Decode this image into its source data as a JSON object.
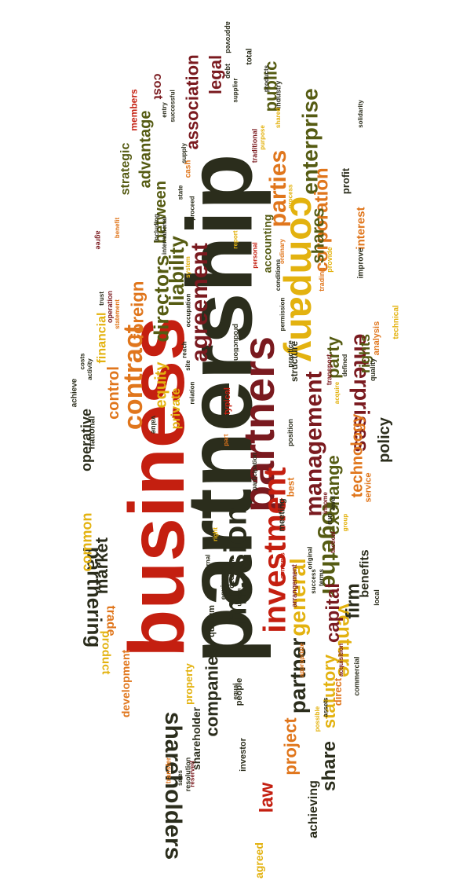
{
  "colors": {
    "red": "#c41f10",
    "orange": "#e0761c",
    "gold": "#e3b20f",
    "green": "#555b12",
    "dark": "#2b2d1c",
    "maroon": "#7a1a1f"
  },
  "words": [
    {
      "text": "partnership",
      "color": "dark",
      "size": 118
    },
    {
      "text": "business",
      "color": "red",
      "size": 100
    },
    {
      "text": "partners",
      "color": "maroon",
      "size": 56
    },
    {
      "text": "company",
      "color": "gold",
      "size": 48
    },
    {
      "text": "investment",
      "color": "red",
      "size": 40
    },
    {
      "text": "mission",
      "color": "dark",
      "size": 40
    },
    {
      "text": "contract",
      "color": "orange",
      "size": 34
    },
    {
      "text": "agreement",
      "color": "maroon",
      "size": 30
    },
    {
      "text": "management",
      "color": "maroon",
      "size": 30
    },
    {
      "text": "parties",
      "color": "orange",
      "size": 30
    },
    {
      "text": "shareholders",
      "color": "dark",
      "size": 30
    },
    {
      "text": "together",
      "color": "green",
      "size": 30
    },
    {
      "text": "enterprises",
      "color": "maroon",
      "size": 28
    },
    {
      "text": "enterprise",
      "color": "green",
      "size": 28
    },
    {
      "text": "partner",
      "color": "dark",
      "size": 28
    },
    {
      "text": "general",
      "color": "gold",
      "size": 28
    },
    {
      "text": "liability",
      "color": "green",
      "size": 26
    },
    {
      "text": "directors",
      "color": "green",
      "size": 26
    },
    {
      "text": "venture",
      "color": "gold",
      "size": 26
    },
    {
      "text": "partnering",
      "color": "dark",
      "size": 26
    },
    {
      "text": "law",
      "color": "red",
      "size": 24
    },
    {
      "text": "corporation",
      "color": "orange",
      "size": 24
    },
    {
      "text": "share",
      "color": "dark",
      "size": 24
    },
    {
      "text": "capital",
      "color": "maroon",
      "size": 24
    },
    {
      "text": "firm",
      "color": "dark",
      "size": 24
    },
    {
      "text": "association",
      "color": "maroon",
      "size": 22
    },
    {
      "text": "legal",
      "color": "maroon",
      "size": 22
    },
    {
      "text": "public",
      "color": "green",
      "size": 22
    },
    {
      "text": "foreign",
      "color": "orange",
      "size": 22
    },
    {
      "text": "market",
      "color": "dark",
      "size": 22
    },
    {
      "text": "companies",
      "color": "dark",
      "size": 22
    },
    {
      "text": "project",
      "color": "orange",
      "size": 22
    },
    {
      "text": "party",
      "color": "green",
      "size": 22
    },
    {
      "text": "shares",
      "color": "green",
      "size": 22
    },
    {
      "text": "exchange",
      "color": "green",
      "size": 22
    },
    {
      "text": "statutory",
      "color": "gold",
      "size": 22
    },
    {
      "text": "technology",
      "color": "orange",
      "size": 20
    },
    {
      "text": "policy",
      "color": "dark",
      "size": 20
    },
    {
      "text": "equity",
      "color": "gold",
      "size": 20
    },
    {
      "text": "control",
      "color": "orange",
      "size": 20
    },
    {
      "text": "between",
      "color": "green",
      "size": 20
    },
    {
      "text": "advantage",
      "color": "green",
      "size": 20
    },
    {
      "text": "operative",
      "color": "dark",
      "size": 18
    },
    {
      "text": "common",
      "color": "gold",
      "size": 18
    },
    {
      "text": "rights",
      "color": "green",
      "size": 18
    },
    {
      "text": "benefits",
      "color": "dark",
      "size": 16
    },
    {
      "text": "achieving",
      "color": "dark",
      "size": 16
    },
    {
      "text": "financial",
      "color": "gold",
      "size": 16
    },
    {
      "text": "strategic",
      "color": "green",
      "size": 16
    },
    {
      "text": "trade",
      "color": "orange",
      "size": 16
    },
    {
      "text": "cost",
      "color": "maroon",
      "size": 16
    },
    {
      "text": "private",
      "color": "gold",
      "size": 16
    },
    {
      "text": "interest",
      "color": "orange",
      "size": 15
    },
    {
      "text": "product",
      "color": "gold",
      "size": 15
    },
    {
      "text": "development",
      "color": "orange",
      "size": 14
    },
    {
      "text": "accounting",
      "color": "green",
      "size": 14
    },
    {
      "text": "shareholder",
      "color": "dark",
      "size": 14
    },
    {
      "text": "agreed",
      "color": "gold",
      "size": 14
    },
    {
      "text": "property",
      "color": "gold",
      "size": 13
    },
    {
      "text": "direct",
      "color": "orange",
      "size": 13
    },
    {
      "text": "profit",
      "color": "dark",
      "size": 13
    },
    {
      "text": "structure",
      "color": "dark",
      "size": 12
    },
    {
      "text": "members",
      "color": "red",
      "size": 12
    },
    {
      "text": "best",
      "color": "orange",
      "size": 12
    },
    {
      "text": "meeting",
      "color": "dark",
      "size": 11
    },
    {
      "text": "investor",
      "color": "dark",
      "size": 11
    },
    {
      "text": "people",
      "color": "dark",
      "size": 11
    },
    {
      "text": "quorum",
      "color": "dark",
      "size": 11
    },
    {
      "text": "national",
      "color": "dark",
      "size": 11
    },
    {
      "text": "achieve",
      "color": "dark",
      "size": 10
    },
    {
      "text": "service",
      "color": "orange",
      "size": 11
    },
    {
      "text": "analysis",
      "color": "orange",
      "size": 11
    },
    {
      "text": "technical",
      "color": "gold",
      "size": 10
    },
    {
      "text": "typical",
      "color": "red",
      "size": 11
    },
    {
      "text": "improve",
      "color": "dark",
      "size": 10
    },
    {
      "text": "trading",
      "color": "orange",
      "size": 9
    },
    {
      "text": "transport",
      "color": "maroon",
      "size": 9
    },
    {
      "text": "total",
      "color": "dark",
      "size": 10
    },
    {
      "text": "approved",
      "color": "dark",
      "size": 9
    },
    {
      "text": "debt",
      "color": "dark",
      "size": 9
    },
    {
      "text": "supplier",
      "color": "dark",
      "size": 8
    },
    {
      "text": "products",
      "color": "dark",
      "size": 8
    },
    {
      "text": "industry",
      "color": "dark",
      "size": 9
    },
    {
      "text": "shared",
      "color": "gold",
      "size": 8
    },
    {
      "text": "solidarity",
      "color": "dark",
      "size": 8
    },
    {
      "text": "successful",
      "color": "dark",
      "size": 8
    },
    {
      "text": "entry",
      "color": "dark",
      "size": 8
    },
    {
      "text": "supply",
      "color": "dark",
      "size": 8
    },
    {
      "text": "cash",
      "color": "orange",
      "size": 10
    },
    {
      "text": "purpose",
      "color": "gold",
      "size": 8
    },
    {
      "text": "traditional",
      "color": "maroon",
      "size": 9
    },
    {
      "text": "process",
      "color": "gold",
      "size": 8
    },
    {
      "text": "state",
      "color": "dark",
      "size": 8
    },
    {
      "text": "proceed",
      "color": "dark",
      "size": 8
    },
    {
      "text": "benefit",
      "color": "orange",
      "size": 8
    },
    {
      "text": "agree",
      "color": "maroon",
      "size": 9
    },
    {
      "text": "including",
      "color": "dark",
      "size": 8
    },
    {
      "text": "international",
      "color": "dark",
      "size": 8
    },
    {
      "text": "report",
      "color": "gold",
      "size": 8
    },
    {
      "text": "personal",
      "color": "red",
      "size": 8
    },
    {
      "text": "ordinary",
      "color": "orange",
      "size": 8
    },
    {
      "text": "provide",
      "color": "gold",
      "size": 9
    },
    {
      "text": "system",
      "color": "gold",
      "size": 8
    },
    {
      "text": "conditions",
      "color": "dark",
      "size": 8
    },
    {
      "text": "trust",
      "color": "dark",
      "size": 8
    },
    {
      "text": "operation",
      "color": "maroon",
      "size": 9
    },
    {
      "text": "statement",
      "color": "orange",
      "size": 8
    },
    {
      "text": "occupation",
      "color": "dark",
      "size": 8
    },
    {
      "text": "permission",
      "color": "dark",
      "size": 8
    },
    {
      "text": "production",
      "color": "dark",
      "size": 9
    },
    {
      "text": "practice",
      "color": "dark",
      "size": 9
    },
    {
      "text": "defined",
      "color": "dark",
      "size": 8
    },
    {
      "text": "quality",
      "color": "dark",
      "size": 9
    },
    {
      "text": "reach",
      "color": "dark",
      "size": 8
    },
    {
      "text": "site",
      "color": "dark",
      "size": 8
    },
    {
      "text": "costs",
      "color": "dark",
      "size": 8
    },
    {
      "text": "activity",
      "color": "dark",
      "size": 8
    },
    {
      "text": "acquire",
      "color": "gold",
      "size": 8
    },
    {
      "text": "relation",
      "color": "dark",
      "size": 8
    },
    {
      "text": "value",
      "color": "dark",
      "size": 9
    },
    {
      "text": "position",
      "color": "dark",
      "size": 9
    },
    {
      "text": "participation",
      "color": "dark",
      "size": 8
    },
    {
      "text": "income",
      "color": "maroon",
      "size": 8
    },
    {
      "text": "run",
      "color": "dark",
      "size": 9
    },
    {
      "text": "level",
      "color": "dark",
      "size": 8
    },
    {
      "text": "group",
      "color": "gold",
      "size": 8
    },
    {
      "text": "tactical",
      "color": "maroon",
      "size": 8
    },
    {
      "text": "right",
      "color": "gold",
      "size": 8
    },
    {
      "text": "internal",
      "color": "dark",
      "size": 8
    },
    {
      "text": "equipment",
      "color": "dark",
      "size": 9
    },
    {
      "text": "decision",
      "color": "dark",
      "size": 9
    },
    {
      "text": "usage",
      "color": "dark",
      "size": 8
    },
    {
      "text": "contents",
      "color": "red",
      "size": 8
    },
    {
      "text": "arrangement",
      "color": "maroon",
      "size": 9
    },
    {
      "text": "original",
      "color": "dark",
      "size": 8
    },
    {
      "text": "success",
      "color": "dark",
      "size": 8
    },
    {
      "text": "terms",
      "color": "dark",
      "size": 8
    },
    {
      "text": "local",
      "color": "dark",
      "size": 9
    },
    {
      "text": "commercial",
      "color": "dark",
      "size": 9
    },
    {
      "text": "acquisition",
      "color": "maroon",
      "size": 8
    },
    {
      "text": "appropriate",
      "color": "orange",
      "size": 8
    },
    {
      "text": "equal",
      "color": "dark",
      "size": 8
    },
    {
      "text": "assets",
      "color": "dark",
      "size": 8
    },
    {
      "text": "possible",
      "color": "gold",
      "size": 8
    },
    {
      "text": "reserved",
      "color": "maroon",
      "size": 8
    },
    {
      "text": "resolution",
      "color": "dark",
      "size": 9
    },
    {
      "text": "sales",
      "color": "dark",
      "size": 8
    },
    {
      "text": "transfer",
      "color": "orange",
      "size": 9
    },
    {
      "text": "part",
      "color": "orange",
      "size": 8
    }
  ]
}
